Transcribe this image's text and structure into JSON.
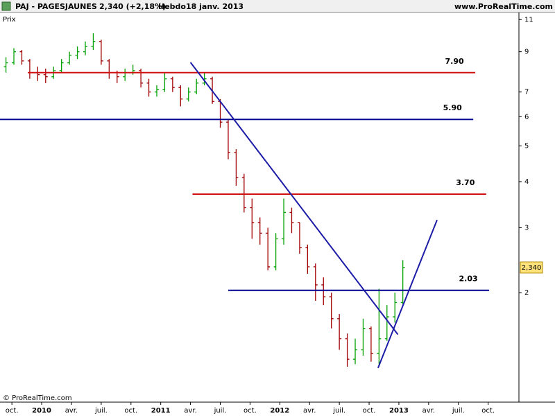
{
  "chart_data": {
    "type": "ohlc",
    "title": "PAJ - PAGESJAUNES",
    "subtitle": "2,340 (+2,18%)",
    "period": "Hebdo",
    "date": "18 janv. 2013",
    "source": "www.ProRealTime.com",
    "ylabel": "Prix",
    "copyright": "© ProRealTime.com",
    "last_value": {
      "value": 2.34,
      "label": "2,340"
    },
    "log_scale": true,
    "up_color": "#00a000",
    "down_color": "#a00000",
    "x": [
      -3.6,
      -2.8,
      -2.0,
      -1.2,
      -0.4,
      0.4,
      1.2,
      2.0,
      2.8,
      3.6,
      4.4,
      5.2,
      6.0,
      6.8,
      7.6,
      8.4,
      9.2,
      10.0,
      10.8,
      11.6,
      12.4,
      13.2,
      14.0,
      14.8,
      15.6,
      16.4,
      17.2,
      18.0,
      18.8,
      19.6,
      20.4,
      21.2,
      22.0,
      22.8,
      23.6,
      24.4,
      25.2,
      26.0,
      26.8,
      27.6,
      28.4,
      29.2,
      30.0,
      30.8,
      31.6,
      32.4,
      33.2,
      34.0,
      34.8,
      35.6,
      36.4
    ],
    "ohlc": [
      [
        8.2,
        8.7,
        7.9,
        8.4
      ],
      [
        8.4,
        9.2,
        8.3,
        9.0
      ],
      [
        9.0,
        9.1,
        8.3,
        8.5
      ],
      [
        8.5,
        8.6,
        7.6,
        7.9
      ],
      [
        7.9,
        8.2,
        7.5,
        7.8
      ],
      [
        7.8,
        8.1,
        7.4,
        7.7
      ],
      [
        7.7,
        8.2,
        7.6,
        8.0
      ],
      [
        8.0,
        8.6,
        7.9,
        8.4
      ],
      [
        8.4,
        9.0,
        8.3,
        8.8
      ],
      [
        8.8,
        9.3,
        8.6,
        9.0
      ],
      [
        9.0,
        9.6,
        8.8,
        9.3
      ],
      [
        9.3,
        10.1,
        9.1,
        9.6
      ],
      [
        9.6,
        9.7,
        8.3,
        8.5
      ],
      [
        8.5,
        8.6,
        7.6,
        7.9
      ],
      [
        7.9,
        8.0,
        7.4,
        7.7
      ],
      [
        7.7,
        8.1,
        7.5,
        7.9
      ],
      [
        7.9,
        8.3,
        7.8,
        8.0
      ],
      [
        8.0,
        8.1,
        7.2,
        7.4
      ],
      [
        7.4,
        7.6,
        6.8,
        7.0
      ],
      [
        7.0,
        7.3,
        6.8,
        7.1
      ],
      [
        7.1,
        7.9,
        7.0,
        7.6
      ],
      [
        7.6,
        7.7,
        7.0,
        7.2
      ],
      [
        7.2,
        7.3,
        6.4,
        6.7
      ],
      [
        6.7,
        7.2,
        6.6,
        7.0
      ],
      [
        7.0,
        7.6,
        6.9,
        7.4
      ],
      [
        7.4,
        7.9,
        7.3,
        7.6
      ],
      [
        7.6,
        7.7,
        6.5,
        6.6
      ],
      [
        6.6,
        6.7,
        5.6,
        5.8
      ],
      [
        5.8,
        5.9,
        4.6,
        4.8
      ],
      [
        4.8,
        4.9,
        3.9,
        4.1
      ],
      [
        4.1,
        4.2,
        3.3,
        3.4
      ],
      [
        3.4,
        3.6,
        2.8,
        3.1
      ],
      [
        3.1,
        3.2,
        2.7,
        2.9
      ],
      [
        2.9,
        3.0,
        2.3,
        2.35
      ],
      [
        2.35,
        2.9,
        2.3,
        2.8
      ],
      [
        2.8,
        3.6,
        2.7,
        3.3
      ],
      [
        3.3,
        3.4,
        2.9,
        3.1
      ],
      [
        3.1,
        3.1,
        2.55,
        2.65
      ],
      [
        2.65,
        2.7,
        2.25,
        2.35
      ],
      [
        2.35,
        2.4,
        1.9,
        2.1
      ],
      [
        2.1,
        2.2,
        1.85,
        1.95
      ],
      [
        1.95,
        2.0,
        1.6,
        1.7
      ],
      [
        1.7,
        1.75,
        1.4,
        1.5
      ],
      [
        1.5,
        1.55,
        1.26,
        1.32
      ],
      [
        1.32,
        1.5,
        1.28,
        1.4
      ],
      [
        1.4,
        1.7,
        1.35,
        1.6
      ],
      [
        1.6,
        1.62,
        1.3,
        1.37
      ],
      [
        1.37,
        2.05,
        1.28,
        1.5
      ],
      [
        1.5,
        1.85,
        1.48,
        1.72
      ],
      [
        1.72,
        2.0,
        1.66,
        1.88
      ],
      [
        1.88,
        2.45,
        1.86,
        2.34
      ]
    ],
    "xlim": [
      -4.2,
      48.1
    ],
    "xticks": [
      {
        "value": -3,
        "label": "oct."
      },
      {
        "value": 0,
        "label": "2010"
      },
      {
        "value": 3,
        "label": "avr."
      },
      {
        "value": 6,
        "label": "juil."
      },
      {
        "value": 9,
        "label": "oct."
      },
      {
        "value": 12,
        "label": "2011"
      },
      {
        "value": 15,
        "label": "avr."
      },
      {
        "value": 18,
        "label": "juil."
      },
      {
        "value": 21,
        "label": "oct."
      },
      {
        "value": 24,
        "label": "2012"
      },
      {
        "value": 27,
        "label": "avr."
      },
      {
        "value": 30,
        "label": "juil."
      },
      {
        "value": 33,
        "label": "oct."
      },
      {
        "value": 36,
        "label": "2013"
      },
      {
        "value": 39,
        "label": "avr."
      },
      {
        "value": 42,
        "label": "juil."
      },
      {
        "value": 45,
        "label": "oct."
      }
    ],
    "ylim": [
      1.01,
      11.5
    ],
    "yticks": [
      2,
      3,
      4,
      5,
      6,
      7,
      9,
      11
    ],
    "levels": [
      {
        "value": 7.9,
        "label": "7.90",
        "color": "#d01010",
        "from": -1.4,
        "to": 43.7
      },
      {
        "value": 5.9,
        "label": "5.90",
        "color": "#000090",
        "from": -4.2,
        "to": 43.5
      },
      {
        "value": 3.7,
        "label": "3.70",
        "color": "#d01010",
        "from": 15.2,
        "to": 44.8
      },
      {
        "value": 2.03,
        "label": "2.03",
        "color": "#000090",
        "from": 18.8,
        "to": 45.1
      }
    ],
    "trendlines": [
      {
        "x": [
          15.0,
          35.9
        ],
        "y": [
          8.42,
          1.54
        ],
        "color": "#1c1ca8"
      },
      {
        "x": [
          33.9,
          39.85
        ],
        "y": [
          1.25,
          3.15
        ],
        "color": "#1c1ca8"
      }
    ]
  }
}
